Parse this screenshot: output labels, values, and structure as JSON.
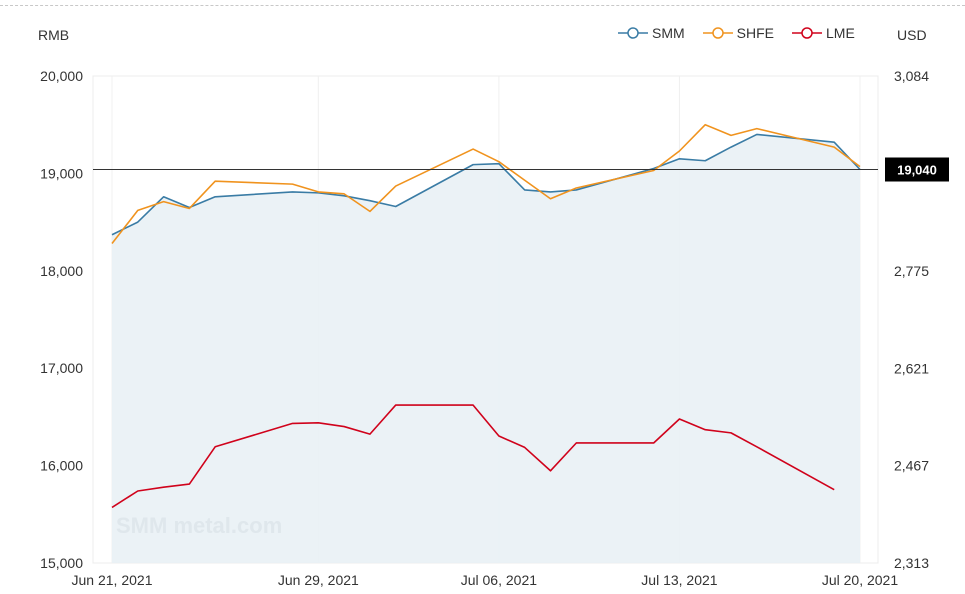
{
  "chart_data": {
    "type": "line",
    "y_left_unit": "RMB",
    "y_right_unit": "USD",
    "ylim_left": [
      15000,
      20000
    ],
    "ylim_right": [
      2313,
      3084
    ],
    "y_left_ticks": [
      "20,000",
      "19,000",
      "18,000",
      "17,000",
      "16,000",
      "15,000"
    ],
    "y_right_ticks": [
      "3,084",
      "2,775",
      "2,621",
      "2,467",
      "2,313"
    ],
    "x_tick_labels": [
      "Jun 21, 2021",
      "Jun 29, 2021",
      "Jul 06, 2021",
      "Jul 13, 2021",
      "Jul 20, 2021"
    ],
    "x_tick_dates": [
      "2021-06-21",
      "2021-06-29",
      "2021-07-06",
      "2021-07-13",
      "2021-07-20"
    ],
    "current_value_label": "19,040",
    "current_value": 19040,
    "watermark": "SMM metal.com",
    "legend_position": "top-right",
    "area_fill_series": "SMM",
    "series": [
      {
        "name": "SMM",
        "axis": "left",
        "color": "#3a7ca5",
        "x": [
          "2021-06-21",
          "2021-06-22",
          "2021-06-23",
          "2021-06-24",
          "2021-06-25",
          "2021-06-28",
          "2021-06-29",
          "2021-06-30",
          "2021-07-01",
          "2021-07-02",
          "2021-07-05",
          "2021-07-06",
          "2021-07-07",
          "2021-07-08",
          "2021-07-09",
          "2021-07-12",
          "2021-07-13",
          "2021-07-14",
          "2021-07-15",
          "2021-07-16",
          "2021-07-19",
          "2021-07-20"
        ],
        "values": [
          18370,
          18500,
          18760,
          18650,
          18760,
          18810,
          18800,
          18770,
          18720,
          18660,
          19090,
          19100,
          18830,
          18810,
          18830,
          19050,
          19150,
          19130,
          19270,
          19400,
          19320,
          19040
        ]
      },
      {
        "name": "SHFE",
        "axis": "left",
        "color": "#f0931e",
        "x": [
          "2021-06-21",
          "2021-06-22",
          "2021-06-23",
          "2021-06-24",
          "2021-06-25",
          "2021-06-28",
          "2021-06-29",
          "2021-06-30",
          "2021-07-01",
          "2021-07-02",
          "2021-07-05",
          "2021-07-06",
          "2021-07-07",
          "2021-07-08",
          "2021-07-09",
          "2021-07-12",
          "2021-07-13",
          "2021-07-14",
          "2021-07-15",
          "2021-07-16",
          "2021-07-19",
          "2021-07-20"
        ],
        "values": [
          18280,
          18620,
          18710,
          18640,
          18920,
          18890,
          18810,
          18790,
          18610,
          18870,
          19250,
          19120,
          18930,
          18740,
          18850,
          19030,
          19230,
          19500,
          19390,
          19460,
          19270,
          19070
        ]
      },
      {
        "name": "LME",
        "axis": "right",
        "color": "#d0021b",
        "x": [
          "2021-06-21",
          "2021-06-22",
          "2021-06-23",
          "2021-06-24",
          "2021-06-25",
          "2021-06-28",
          "2021-06-29",
          "2021-06-30",
          "2021-07-01",
          "2021-07-02",
          "2021-07-05",
          "2021-07-06",
          "2021-07-07",
          "2021-07-08",
          "2021-07-09",
          "2021-07-12",
          "2021-07-13",
          "2021-07-14",
          "2021-07-15",
          "2021-07-16",
          "2021-07-19"
        ],
        "values": [
          2401,
          2427,
          2433,
          2438,
          2497,
          2534,
          2535,
          2529,
          2517,
          2563,
          2563,
          2514,
          2496,
          2459,
          2503,
          2503,
          2541,
          2524,
          2519,
          2497,
          2429
        ]
      }
    ]
  }
}
